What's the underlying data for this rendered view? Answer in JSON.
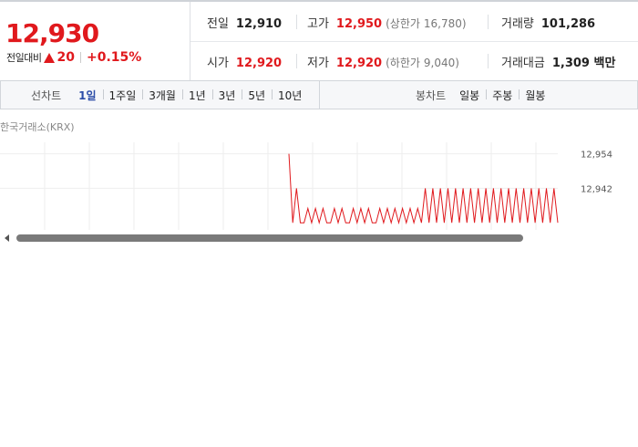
{
  "price": {
    "current": "12,930",
    "change_label": "전일대비",
    "change_amount": "20",
    "change_percent": "+0.15%"
  },
  "stats": {
    "prev_close_label": "전일",
    "prev_close": "12,910",
    "high_label": "고가",
    "high": "12,950",
    "upper_limit_label": "(상한가",
    "upper_limit": "16,780)",
    "volume_label": "거래량",
    "volume": "101,286",
    "open_label": "시가",
    "open": "12,920",
    "low_label": "저가",
    "low": "12,920",
    "lower_limit_label": "(하한가",
    "lower_limit": "9,040)",
    "trade_value_label": "거래대금",
    "trade_value": "1,309 백만"
  },
  "tabs": {
    "line_chart_label": "선차트",
    "line_items": [
      "1일",
      "1주일",
      "3개월",
      "1년",
      "3년",
      "5년",
      "10년"
    ],
    "active_index": 0,
    "candle_chart_label": "봉차트",
    "candle_items": [
      "일봉",
      "주봉",
      "월봉"
    ]
  },
  "chart_data": {
    "type": "line",
    "source_label": "한국거래소(KRX)",
    "ytick_labels": [
      "12,954",
      "12,942"
    ],
    "ylim": [
      12930,
      12958
    ],
    "grid": true,
    "series_color": "#e0191d",
    "series": [
      {
        "values": [
          12954,
          12930,
          12942,
          12930,
          12930,
          12935,
          12930,
          12935,
          12930,
          12935,
          12930,
          12930,
          12935,
          12930,
          12935,
          12930,
          12930,
          12935,
          12930,
          12935,
          12930,
          12935,
          12930,
          12930,
          12935,
          12930,
          12935,
          12930,
          12935,
          12930,
          12935,
          12930,
          12935,
          12930,
          12935,
          12930,
          12942,
          12930,
          12942,
          12930,
          12942,
          12930,
          12942,
          12930,
          12942,
          12930,
          12942,
          12930,
          12942,
          12930,
          12942,
          12930,
          12942,
          12930,
          12942,
          12930,
          12942,
          12930,
          12942,
          12930,
          12942,
          12930,
          12942,
          12930,
          12942,
          12930,
          12942,
          12930,
          12942,
          12930,
          12942,
          12930
        ]
      }
    ]
  },
  "colors": {
    "up": "#e0191d",
    "active_tab": "#2c4da8"
  }
}
